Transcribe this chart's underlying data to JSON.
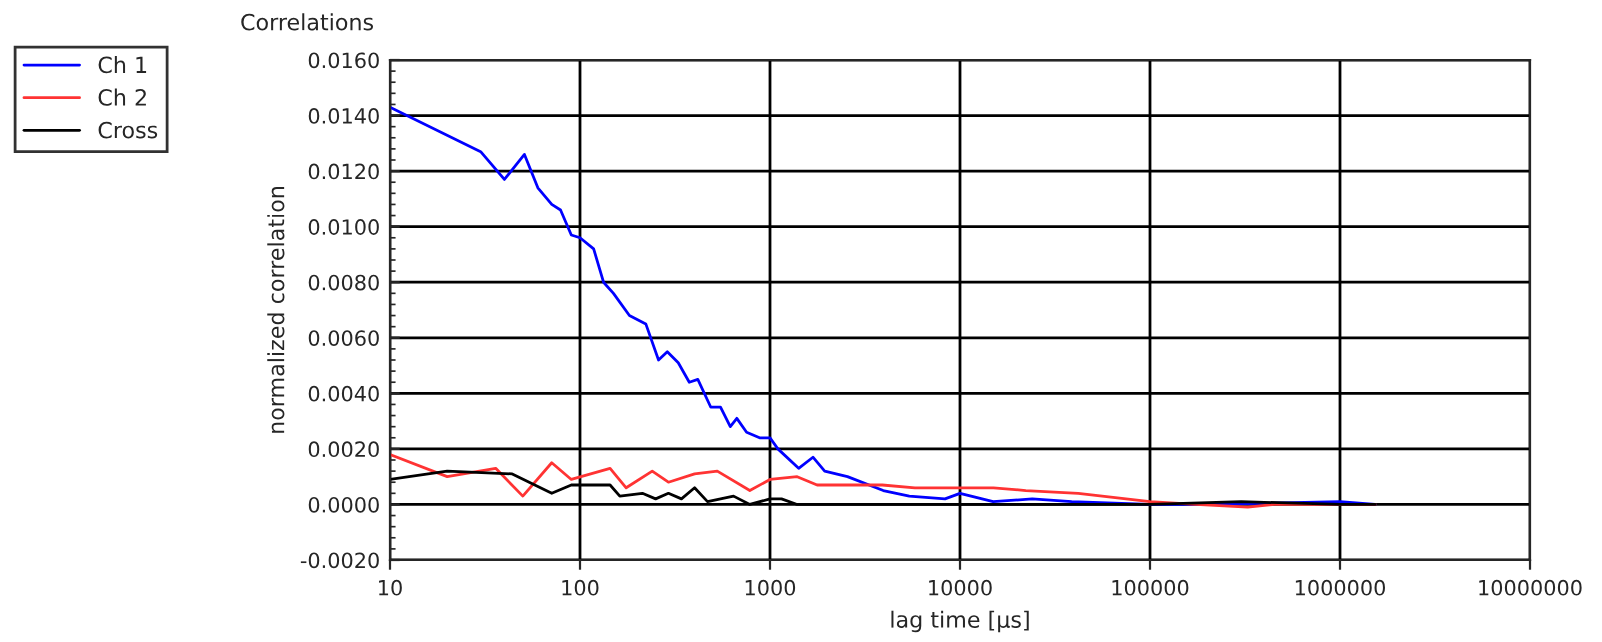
{
  "chart_data": {
    "type": "line",
    "title": "Correlations",
    "xlabel": "lag time [µs]",
    "ylabel": "normalized correlation",
    "log": "x",
    "grid": true,
    "legend": "top left",
    "xlim": [
      10,
      10000000
    ],
    "xticks": [
      10,
      100,
      1000,
      10000,
      100000,
      1000000,
      10000000
    ],
    "ylim": [
      -0.002,
      0.016
    ],
    "yticks": [
      {
        "value": -0.002,
        "label": "-0.0020"
      },
      {
        "value": 0,
        "label": "0.0000"
      },
      {
        "value": 0.002,
        "label": "0.0020"
      },
      {
        "value": 0.004,
        "label": "0.0040"
      },
      {
        "value": 0.006,
        "label": "0.0060"
      },
      {
        "value": 0.008,
        "label": "0.0080"
      },
      {
        "value": 0.01,
        "label": "0.0100"
      },
      {
        "value": 0.012,
        "label": "0.0120"
      },
      {
        "value": 0.014,
        "label": "0.0140"
      },
      {
        "value": 0.016,
        "label": "0.0160"
      }
    ],
    "series": [
      {
        "name": "Ch 1",
        "color": "#0000ff",
        "x": [
          10,
          30,
          40,
          51,
          60,
          71,
          79,
          90,
          100,
          118,
          133,
          150,
          182,
          222,
          259,
          288,
          329,
          376,
          417,
          488,
          549,
          618,
          669,
          753,
          881,
          1000,
          1100,
          1415,
          1683,
          1940,
          2557,
          3945,
          5410,
          8340,
          10000,
          14950,
          24000,
          38700,
          100000,
          204000,
          1000000,
          1530000
        ],
        "values": [
          0.0143,
          0.0127,
          0.0117,
          0.0126,
          0.0114,
          0.0108,
          0.0106,
          0.0097,
          0.0096,
          0.0092,
          0.008,
          0.0076,
          0.0068,
          0.0065,
          0.0052,
          0.0055,
          0.0051,
          0.0044,
          0.0045,
          0.0035,
          0.0035,
          0.0028,
          0.0031,
          0.0026,
          0.0024,
          0.0024,
          0.002,
          0.0013,
          0.0017,
          0.0012,
          0.001,
          0.0005,
          0.0003,
          0.0002,
          0.0004,
          0.0001,
          0.0002,
          0.0001,
          0.0,
          0.0,
          0.0001,
          0.0
        ]
      },
      {
        "name": "Ch 2",
        "color": "#ff3333",
        "x": [
          10,
          20,
          36,
          50,
          71,
          90,
          144,
          175,
          240,
          292,
          401,
          528,
          783,
          1000,
          1390,
          1770,
          2620,
          3900,
          5790,
          10000,
          15000,
          22200,
          41900,
          100000,
          174000,
          327000,
          450000,
          1000000,
          1530000
        ],
        "values": [
          0.0018,
          0.001,
          0.0013,
          0.0003,
          0.0015,
          0.0009,
          0.0013,
          0.0006,
          0.0012,
          0.0008,
          0.0011,
          0.0012,
          0.0005,
          0.0009,
          0.001,
          0.0007,
          0.0007,
          0.0007,
          0.0006,
          0.0006,
          0.0006,
          0.0005,
          0.0004,
          0.0001,
          0.0,
          -0.0001,
          0.0,
          0.0,
          0.0
        ]
      },
      {
        "name": "Cross",
        "color": "#000000",
        "x": [
          10,
          20,
          44,
          71,
          90,
          144,
          162,
          213,
          250,
          292,
          342,
          401,
          469,
          643,
          783,
          1000,
          1150,
          1390,
          3000,
          10000,
          100000,
          302000,
          1000000,
          1530000
        ],
        "values": [
          0.0009,
          0.0012,
          0.0011,
          0.0004,
          0.0007,
          0.0007,
          0.0003,
          0.0004,
          0.0002,
          0.0004,
          0.0002,
          0.0006,
          0.0001,
          0.0003,
          0.0,
          0.0002,
          0.0002,
          0.0,
          0.0,
          0.0,
          0.0,
          0.0001,
          0.0,
          0.0
        ]
      }
    ]
  }
}
